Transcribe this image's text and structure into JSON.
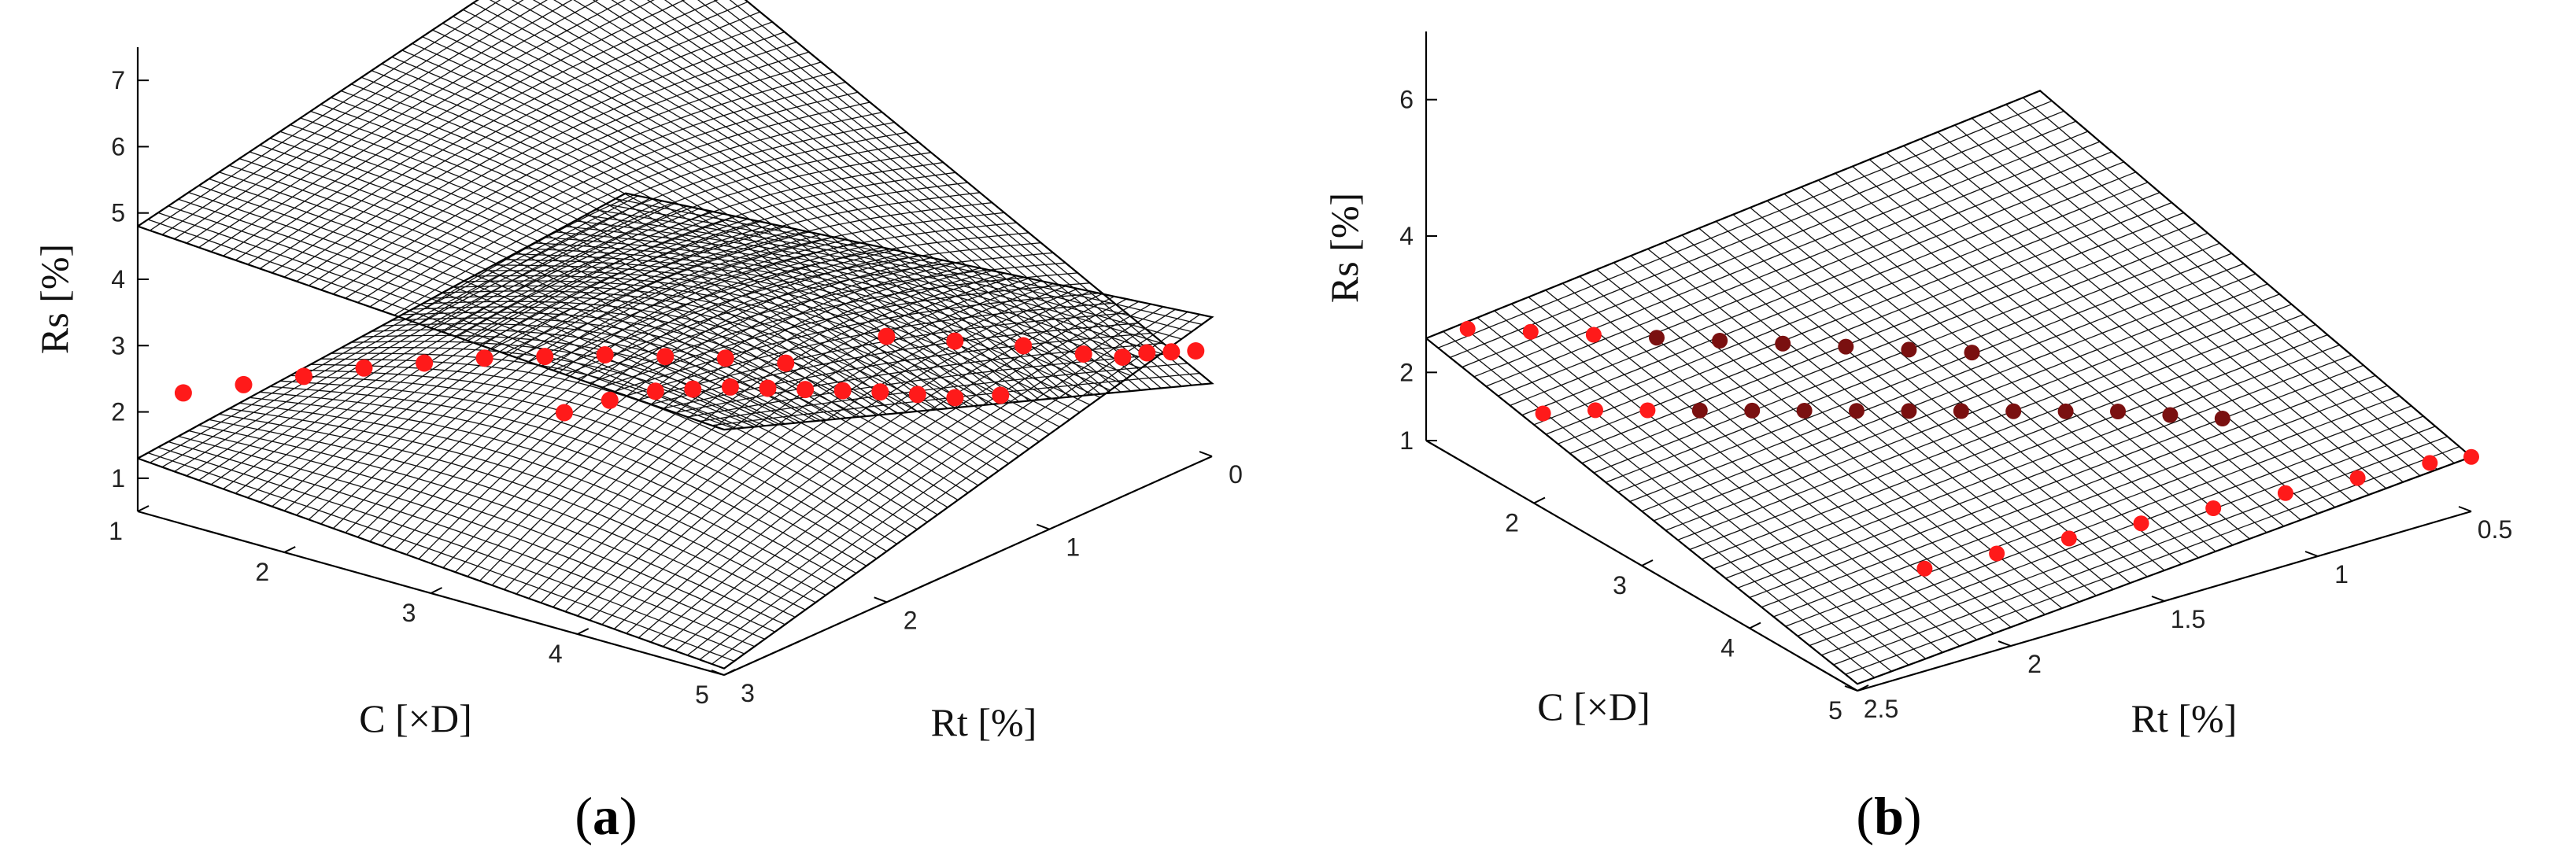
{
  "chart_data": [
    {
      "panel_label": "a",
      "type": "surface3d",
      "axes": {
        "z": {
          "label": "Rs [%]",
          "range": [
            0.5,
            7.5
          ],
          "ticks": [
            "1",
            "2",
            "3",
            "4",
            "5",
            "6",
            "7"
          ]
        },
        "x": {
          "label": "C [×D]",
          "range": [
            1,
            5
          ],
          "ticks": [
            "1",
            "2",
            "3",
            "4",
            "5"
          ]
        },
        "y": {
          "label": "Rt [%]",
          "range": [
            0,
            3
          ],
          "ticks": [
            "0",
            "1",
            "2",
            "3"
          ]
        }
      },
      "surfaces": [
        {
          "name": "upper-surface",
          "corners_z": {
            "c1_rt3": 4.8,
            "c5_rt0": 1.6,
            "c1_rt0": 6.4,
            "c5_rt3": 4.2
          }
        },
        {
          "name": "lower-surface",
          "corners_z": {
            "c1_rt3": 1.3,
            "c5_rt0": 2.6,
            "c1_rt0": 2.0,
            "c5_rt3": 0.6
          }
        }
      ],
      "series": [
        {
          "name": "arc-upper",
          "points_C_Rt_Rs": [
            [
              1.2,
              2.9,
              2.3
            ],
            [
              1.5,
              2.8,
              2.5
            ],
            [
              1.8,
              2.7,
              2.7
            ],
            [
              2.1,
              2.6,
              2.9
            ],
            [
              2.4,
              2.5,
              3.05
            ],
            [
              2.7,
              2.4,
              3.2
            ],
            [
              3.0,
              2.3,
              3.3
            ],
            [
              3.3,
              2.2,
              3.4
            ],
            [
              3.6,
              2.1,
              3.45
            ],
            [
              3.9,
              2.0,
              3.5
            ],
            [
              4.2,
              1.9,
              3.5
            ]
          ]
        },
        {
          "name": "arc-middle",
          "points_C_Rt_Rs": [
            [
              2.8,
              2.0,
              2.0
            ],
            [
              3.0,
              1.9,
              2.2
            ],
            [
              3.2,
              1.8,
              2.35
            ],
            [
              3.4,
              1.75,
              2.45
            ],
            [
              3.6,
              1.7,
              2.55
            ],
            [
              3.8,
              1.65,
              2.6
            ],
            [
              4.0,
              1.6,
              2.65
            ],
            [
              4.2,
              1.55,
              2.7
            ],
            [
              4.4,
              1.5,
              2.75
            ],
            [
              4.6,
              1.45,
              2.78
            ],
            [
              4.8,
              1.4,
              2.8
            ],
            [
              5.0,
              1.3,
              2.85
            ]
          ]
        },
        {
          "name": "arc-tail",
          "points_C_Rt_Rs": [
            [
              4.0,
              1.1,
              2.9
            ],
            [
              4.3,
              0.95,
              2.85
            ],
            [
              4.6,
              0.8,
              2.8
            ],
            [
              4.9,
              0.7,
              2.75
            ],
            [
              5.0,
              0.55,
              2.6
            ],
            [
              5.0,
              0.4,
              2.5
            ],
            [
              5.0,
              0.25,
              2.35
            ],
            [
              5.0,
              0.1,
              2.2
            ]
          ]
        }
      ]
    },
    {
      "panel_label": "b",
      "type": "surface3d",
      "axes": {
        "z": {
          "label": "Rs [%]",
          "range": [
            1,
            7
          ],
          "ticks": [
            "1",
            "2",
            "4",
            "6"
          ]
        },
        "x": {
          "label": "C [×D]",
          "range": [
            1,
            5
          ],
          "ticks": [
            "2",
            "3",
            "4",
            "5"
          ]
        },
        "y": {
          "label": "Rt [%]",
          "range": [
            0.5,
            2.5
          ],
          "ticks": [
            "0.5",
            "1",
            "1.5",
            "2",
            "2.5"
          ]
        }
      },
      "surfaces": [
        {
          "name": "plane-surface",
          "corners_z": {
            "c1_rt25": 2.5,
            "c5_rt05": 1.8,
            "c1_rt05": 3.5,
            "c5_rt25": 1.1
          }
        }
      ],
      "series": [
        {
          "name": "row-top",
          "points_C_Rt_Rs": [
            [
              1.1,
              2.4,
              2.6
            ],
            [
              1.4,
              2.3,
              2.7
            ],
            [
              1.7,
              2.2,
              2.8
            ],
            [
              2.0,
              2.1,
              2.9
            ],
            [
              2.3,
              2.0,
              3.0
            ],
            [
              2.6,
              1.9,
              3.1
            ],
            [
              2.9,
              1.8,
              3.2
            ],
            [
              3.2,
              1.7,
              3.3
            ],
            [
              3.5,
              1.6,
              3.4
            ]
          ]
        },
        {
          "name": "row-middle",
          "points_C_Rt_Rs": [
            [
              1.8,
              2.4,
              2.0
            ],
            [
              2.0,
              2.3,
              2.1
            ],
            [
              2.2,
              2.2,
              2.15
            ],
            [
              2.4,
              2.1,
              2.2
            ],
            [
              2.6,
              2.0,
              2.25
            ],
            [
              2.8,
              1.9,
              2.3
            ],
            [
              3.0,
              1.8,
              2.35
            ],
            [
              3.2,
              1.7,
              2.4
            ],
            [
              3.4,
              1.6,
              2.45
            ],
            [
              3.6,
              1.5,
              2.5
            ],
            [
              3.8,
              1.4,
              2.55
            ],
            [
              4.0,
              1.3,
              2.6
            ],
            [
              4.2,
              1.2,
              2.6
            ],
            [
              4.4,
              1.1,
              2.6
            ]
          ]
        },
        {
          "name": "row-bottom",
          "points_C_Rt_Rs": [
            [
              4.2,
              2.0,
              1.4
            ],
            [
              4.3,
              1.8,
              1.45
            ],
            [
              4.4,
              1.6,
              1.5
            ],
            [
              4.5,
              1.4,
              1.55
            ],
            [
              4.6,
              1.2,
              1.6
            ],
            [
              4.7,
              1.0,
              1.65
            ],
            [
              4.8,
              0.8,
              1.7
            ],
            [
              4.9,
              0.6,
              1.75
            ],
            [
              5.0,
              0.5,
              1.8
            ]
          ]
        }
      ]
    }
  ]
}
